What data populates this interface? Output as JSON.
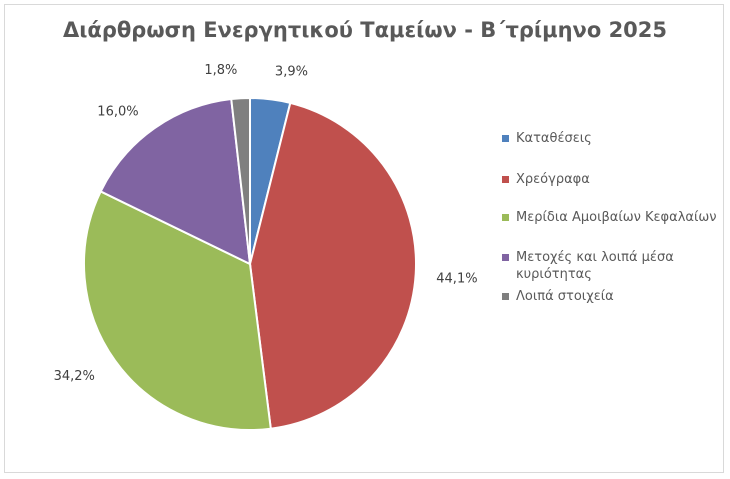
{
  "chart_data": {
    "type": "pie",
    "title": "Διάρθρωση Ενεργητικού Ταμείων - Β΄τρίμηνο 2025",
    "legend_position": "right",
    "slices": [
      {
        "label": "Καταθέσεις",
        "value": 3.9,
        "value_label": "3,9%",
        "color": "#4f81bd"
      },
      {
        "label": "Χρεόγραφα",
        "value": 44.1,
        "value_label": "44,1%",
        "color": "#c0504d"
      },
      {
        "label": "Μερίδια Αμοιβαίων Κεφαλαίων",
        "value": 34.2,
        "value_label": "34,2%",
        "color": "#9bbb59"
      },
      {
        "label": "Μετοχές και λοιπά μέσα κυριότητας",
        "value": 16.0,
        "value_label": "16,0%",
        "color": "#8064a2"
      },
      {
        "label": "Λοιπά στοιχεία",
        "value": 1.8,
        "value_label": "1,8%",
        "color": "#7f7f7f"
      }
    ]
  }
}
